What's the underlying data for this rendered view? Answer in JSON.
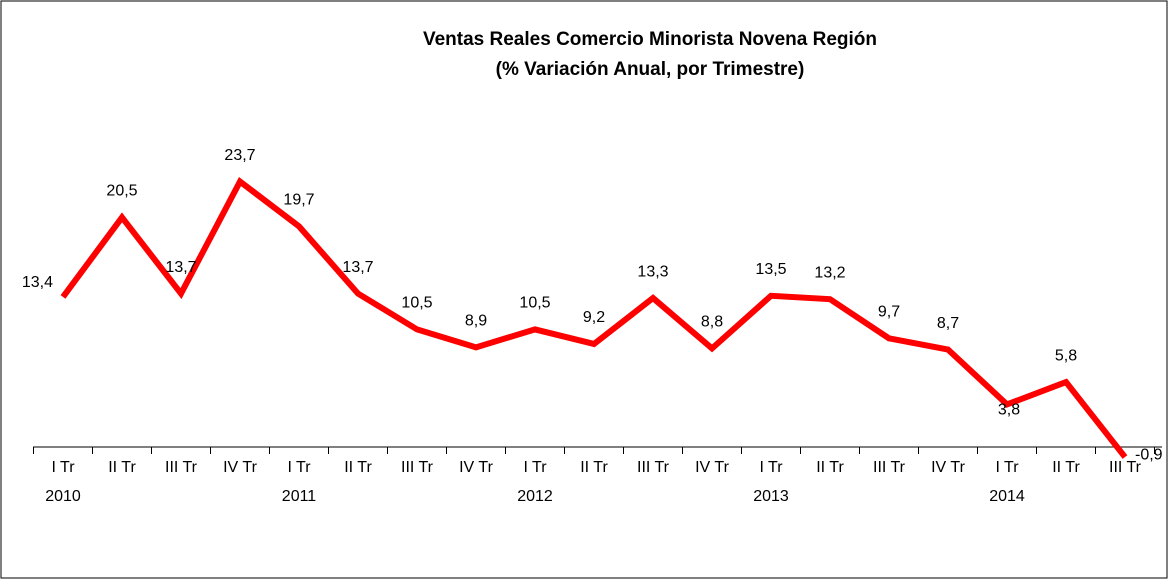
{
  "chart_data": {
    "type": "line",
    "title": "Ventas Reales Comercio Minorista Novena Región",
    "subtitle": "(% Variación Anual, por Trimestre)",
    "categories": [
      "I Tr",
      "II Tr",
      "III Tr",
      "IV Tr",
      "I Tr",
      "II Tr",
      "III Tr",
      "IV Tr",
      "I Tr",
      "II Tr",
      "III Tr",
      "IV Tr",
      "I Tr",
      "II Tr",
      "III Tr",
      "IV Tr",
      "I Tr",
      "II Tr",
      "III Tr"
    ],
    "year_labels": [
      "2010",
      null,
      null,
      null,
      "2011",
      null,
      null,
      null,
      "2012",
      null,
      null,
      null,
      "2013",
      null,
      null,
      null,
      "2014",
      null,
      null
    ],
    "series": [
      {
        "color": "#ff0000",
        "values": [
          13.4,
          20.5,
          13.7,
          23.7,
          19.7,
          13.7,
          10.5,
          8.9,
          10.5,
          9.2,
          13.3,
          8.8,
          13.5,
          13.2,
          9.7,
          8.7,
          3.8,
          5.8,
          -0.9
        ],
        "value_labels": [
          "13,4",
          "20,5",
          "13,7",
          "23,7",
          "19,7",
          "13,7",
          "10,5",
          "8,9",
          "10,5",
          "9,2",
          "13,3",
          "8,8",
          "13,5",
          "13,2",
          "9,7",
          "8,7",
          "3,8",
          "5,8",
          "-0,9"
        ]
      }
    ]
  }
}
